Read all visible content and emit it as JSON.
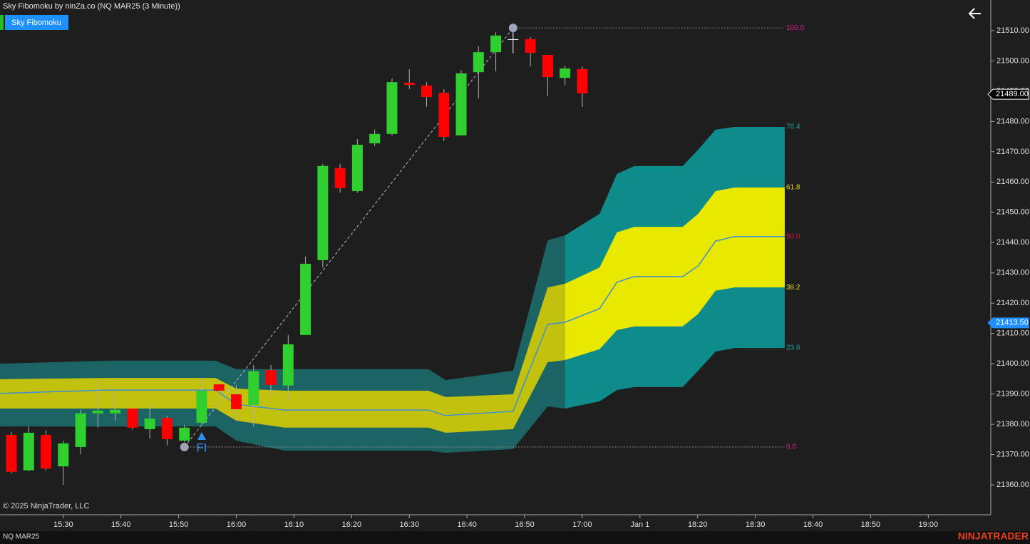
{
  "window_title": "Sky Fibomoku by ninZa.co (NQ MAR25 (3 Minute))",
  "indicator_button": "Sky Fibomoku",
  "copyright": "© 2025 NinjaTrader, LLC",
  "instrument": "NQ MAR25",
  "brand": "NINJATRADER",
  "chart_data": {
    "type": "candlestick",
    "open": [
      21376.5,
      21364.8,
      21376.5,
      21366.1,
      21372.5,
      21383.6,
      21383.6,
      21385.2,
      21378.4,
      21382.1,
      21374.6,
      21380.5,
      21393.2,
      21389.9,
      21386.4,
      21397.9,
      21392.8,
      21409.5,
      21434.2,
      21464.6,
      21457.0,
      21472.8,
      21475.9,
      21492.8,
      21491.9,
      21489.5,
      21475.4,
      21496.3,
      21502.9,
      21507.2,
      21507.2,
      21502.0,
      21494.4,
      21497.3
    ],
    "high": [
      21377.4,
      21379.3,
      21378.0,
      21374.6,
      21384.8,
      21394.2,
      21391.0,
      21385.9,
      21387.1,
      21382.9,
      21379.8,
      21395.3,
      21394.0,
      21393.0,
      21399.6,
      21399.6,
      21409.5,
      21435.4,
      21466.0,
      21466.0,
      21474.2,
      21477.3,
      21494.2,
      21497.3,
      21493.0,
      21490.7,
      21497.0,
      21504.8,
      21509.5,
      21509.5,
      21507.9,
      21502.0,
      21498.5,
      21498.2
    ],
    "low": [
      21363.8,
      21364.5,
      21364.8,
      21360.0,
      21370.1,
      21378.9,
      21381.2,
      21378.2,
      21375.3,
      21373.0,
      21374.1,
      21379.8,
      21390.4,
      21381.2,
      21379.3,
      21389.4,
      21388.3,
      21409.5,
      21431.8,
      21456.5,
      21456.5,
      21471.9,
      21475.4,
      21490.7,
      21484.8,
      21473.5,
      21475.4,
      21487.6,
      21496.6,
      21502.5,
      21498.2,
      21488.3,
      21491.9,
      21484.8
    ],
    "close": [
      21364.3,
      21377.2,
      21365.4,
      21373.7,
      21383.6,
      21384.5,
      21384.8,
      21378.9,
      21381.9,
      21375.1,
      21378.9,
      21391.1,
      21391.1,
      21385.0,
      21397.5,
      21393.0,
      21406.4,
      21433.0,
      21465.3,
      21458.0,
      21472.3,
      21475.9,
      21493.0,
      21492.1,
      21488.1,
      21474.9,
      21495.9,
      21502.9,
      21508.4,
      21507.2,
      21502.7,
      21494.7,
      21497.5,
      21489.3
    ],
    "up_color": "#2fcf2f",
    "down_color": "#ff0000",
    "doji_color": "#ffffff",
    "wick_color": "#b0b0b0",
    "ylim": [
      21350.12,
      21520.12
    ],
    "yticks": [
      {
        "value": 21510,
        "label": "21510.00"
      },
      {
        "value": 21500,
        "label": "21500.00"
      },
      {
        "value": 21490,
        "label": "21490.00"
      },
      {
        "value": 21480,
        "label": "21480.00"
      },
      {
        "value": 21470,
        "label": "21470.00"
      },
      {
        "value": 21460,
        "label": "21460.00"
      },
      {
        "value": 21450,
        "label": "21450.00"
      },
      {
        "value": 21440,
        "label": "21440.00"
      },
      {
        "value": 21430,
        "label": "21430.00"
      },
      {
        "value": 21420,
        "label": "21420.00"
      },
      {
        "value": 21410,
        "label": "21410.00"
      },
      {
        "value": 21400,
        "label": "21400.00"
      },
      {
        "value": 21390,
        "label": "21390.00"
      },
      {
        "value": 21380,
        "label": "21380.00"
      },
      {
        "value": 21370,
        "label": "21370.00"
      },
      {
        "value": 21360,
        "label": "21360.00"
      }
    ],
    "x_labels": [
      "15:30",
      "15:40",
      "15:50",
      "16:00",
      "16:10",
      "16:20",
      "16:30",
      "16:40",
      "16:50",
      "17:00",
      "Jan 1",
      "18:20",
      "18:30",
      "18:40",
      "18:50",
      "19:00"
    ],
    "cloud": {
      "x": [
        -0.66,
        5.5,
        11.8,
        13,
        15.8,
        24.1,
        25.1,
        29,
        31,
        32,
        34,
        35,
        36,
        38.8,
        39.7,
        40.7,
        41.8,
        44.7
      ],
      "outer_top": [
        21400.0,
        21401.0,
        21401.0,
        21398.2,
        21398.2,
        21398.2,
        21394.6,
        21397.7,
        21440.8,
        21442.4,
        21449.5,
        21462.7,
        21465.3,
        21465.3,
        21470.7,
        21477.3,
        21478.2,
        21478.2
      ],
      "inner_top": [
        21394.9,
        21395.3,
        21395.3,
        21391.8,
        21391.1,
        21391.1,
        21389.0,
        21389.9,
        21425.2,
        21426.4,
        21431.8,
        21443.4,
        21445.2,
        21445.2,
        21449.5,
        21457.0,
        21458.2,
        21458.2
      ],
      "mid": [
        21390.2,
        21391.3,
        21391.3,
        21386.6,
        21384.7,
        21384.7,
        21382.9,
        21384.3,
        21413.0,
        21413.7,
        21418.2,
        21426.9,
        21428.8,
        21428.8,
        21432.3,
        21440.5,
        21442.0,
        21442.0
      ],
      "inner_bottom": [
        21385.2,
        21385.2,
        21385.2,
        21381.2,
        21378.9,
        21378.9,
        21377.2,
        21378.4,
        21400.5,
        21401.2,
        21404.8,
        21411.1,
        21412.3,
        21412.3,
        21416.5,
        21424.1,
        21425.2,
        21425.2
      ],
      "outer_bottom": [
        21379.3,
        21379.3,
        21379.3,
        21374.6,
        21371.3,
        21371.3,
        21370.6,
        21371.8,
        21385.9,
        21385.2,
        21387.6,
        21391.3,
        21392.3,
        21392.3,
        21397.7,
        21404.0,
        21405.2,
        21405.2
      ],
      "split_x": 32,
      "outer_color_past": "#1c6464",
      "inner_color_past": "#c2c20e",
      "outer_color_future": "#0e8c8c",
      "inner_color_future": "#e8e800",
      "mid_color": "#3d8fd6"
    },
    "fib_levels": [
      {
        "level": {
          "value": 100,
          "label": "100.0"
        },
        "price": 21510.9,
        "color": "#e0218a",
        "line": true
      },
      {
        "level": {
          "value": 76.4,
          "label": "76.4"
        },
        "price": 21478.2,
        "color": "#17a3a3",
        "line": false
      },
      {
        "level": {
          "value": 61.8,
          "label": "61.8"
        },
        "price": 21458.2,
        "color": "#e8d800",
        "line": false
      },
      {
        "level": {
          "value": 50,
          "label": "50.0"
        },
        "price": 21442.0,
        "color": "#dc143c",
        "line": false
      },
      {
        "level": {
          "value": 38.2,
          "label": "38.2"
        },
        "price": 21425.2,
        "color": "#e8d800",
        "line": false
      },
      {
        "level": {
          "value": 23.6,
          "label": "23.6"
        },
        "price": 21405.2,
        "color": "#17a3a3",
        "line": false
      },
      {
        "level": {
          "value": 0,
          "label": "0.0"
        },
        "price": 21372.5,
        "color": "#e0218a",
        "line": true
      }
    ],
    "fib_anchors": [
      10,
      29
    ],
    "signal": {
      "bar": 11,
      "label": "FI",
      "color": "#2f8ff0"
    },
    "price_markers": [
      {
        "value": 21489,
        "label": "21489.00",
        "fill": "#000000",
        "stroke": "#ffffff"
      },
      {
        "value": 21413.5,
        "label": "21413.50",
        "fill": "#1e90ff",
        "stroke": "#1e90ff"
      }
    ]
  }
}
